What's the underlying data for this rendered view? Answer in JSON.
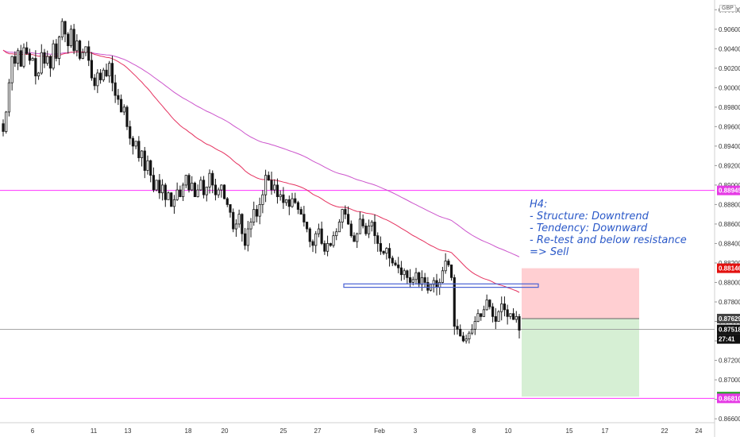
{
  "currency": "GBP",
  "annotation": {
    "lines": [
      "H4:",
      "- Structure: Downtrend",
      "- Tendency: Downward",
      "- Re-test and below resistance",
      "=> Sell"
    ]
  },
  "colors": {
    "up": "#2b2b2b",
    "down": "#111111",
    "ema_fast": "#e53360",
    "ema_slow": "#cc55cc",
    "level_line": "#ff33ff",
    "resistance_zone": "#4a62d4",
    "stop_zone": "#ffcfd2",
    "target_zone": "#d6efd4",
    "badge_red": "#e3110f",
    "badge_magenta": "#e53ae5",
    "badge_green": "#2aa22a",
    "badge_dark": "#444444",
    "badge_black": "#111111"
  },
  "chart_data": {
    "type": "candlestick",
    "symbol_currency": "GBP",
    "timeframe": "H4",
    "ylim": [
      0.8656,
      0.909
    ],
    "y_ticks": [
      "0.90800",
      "0.90600",
      "0.90400",
      "0.90200",
      "0.90000",
      "0.89800",
      "0.89600",
      "0.89400",
      "0.89200",
      "0.89000",
      "0.88800",
      "0.88600",
      "0.88400",
      "0.88200",
      "0.88000",
      "0.87800",
      "0.87600",
      "0.87400",
      "0.87200",
      "0.87000",
      "0.86800",
      "0.86600"
    ],
    "x_ticks": [
      "6",
      "11",
      "13",
      "18",
      "20",
      "25",
      "27",
      "Feb",
      "3",
      "8",
      "10",
      "15",
      "17",
      "22",
      "24"
    ],
    "price_labels": [
      {
        "text": "0.88945",
        "value": 0.88945,
        "color": "badge_magenta"
      },
      {
        "text": "0.88146",
        "value": 0.88146,
        "color": "badge_red"
      },
      {
        "text": "0.87629",
        "value": 0.87629,
        "color": "badge_dark"
      },
      {
        "text": "0.87518",
        "value": 0.87518,
        "color": "badge_black"
      },
      {
        "text": "27:41",
        "value": 0.8742,
        "color": "badge_black"
      },
      {
        "text": "0.86828",
        "value": 0.86828,
        "color": "badge_green"
      },
      {
        "text": "0.86810",
        "value": 0.8681,
        "color": "badge_magenta"
      }
    ],
    "horizontal_levels": [
      0.88945,
      0.8681
    ],
    "resistance_zone": [
      0.8795,
      0.87985
    ],
    "position": {
      "entry": 0.87629,
      "stop": 0.88146,
      "target": 0.86828
    },
    "closes": [
      0.8955,
      0.8975,
      0.9005,
      0.9032,
      0.9025,
      0.9038,
      0.9022,
      0.9041,
      0.9035,
      0.9028,
      0.903,
      0.9012,
      0.9015,
      0.9036,
      0.9025,
      0.9032,
      0.902,
      0.9045,
      0.903,
      0.9052,
      0.9068,
      0.9055,
      0.9043,
      0.906,
      0.9038,
      0.9048,
      0.903,
      0.9036,
      0.9042,
      0.9028,
      0.901,
      0.9002,
      0.9015,
      0.9008,
      0.9018,
      0.9012,
      0.9025,
      0.9005,
      0.8992,
      0.8988,
      0.8975,
      0.898,
      0.896,
      0.8948,
      0.894,
      0.8945,
      0.8928,
      0.8935,
      0.8915,
      0.8925,
      0.891,
      0.8895,
      0.8905,
      0.8892,
      0.89,
      0.8885,
      0.8892,
      0.8878,
      0.8885,
      0.8895,
      0.8888,
      0.89,
      0.891,
      0.8895,
      0.8902,
      0.8888,
      0.8895,
      0.8905,
      0.889,
      0.8898,
      0.8912,
      0.89,
      0.889,
      0.8895,
      0.89,
      0.8886,
      0.888,
      0.8872,
      0.8855,
      0.886,
      0.887,
      0.885,
      0.8838,
      0.8855,
      0.8862,
      0.8875,
      0.8868,
      0.888,
      0.889,
      0.891,
      0.8905,
      0.8895,
      0.89,
      0.8888,
      0.889,
      0.8882,
      0.8885,
      0.8878,
      0.8886,
      0.8882,
      0.8875,
      0.887,
      0.8862,
      0.8855,
      0.8842,
      0.8838,
      0.885,
      0.8855,
      0.884,
      0.8832,
      0.884,
      0.8838,
      0.8848,
      0.8852,
      0.8862,
      0.8875,
      0.887,
      0.886,
      0.8848,
      0.8842,
      0.885,
      0.8865,
      0.8858,
      0.885,
      0.8858,
      0.8862,
      0.8848,
      0.884,
      0.8832,
      0.883,
      0.8835,
      0.8825,
      0.882,
      0.8818,
      0.8815,
      0.8808,
      0.8812,
      0.8805,
      0.88,
      0.8803,
      0.881,
      0.8798,
      0.8805,
      0.88,
      0.8792,
      0.8798,
      0.8802,
      0.8795,
      0.88,
      0.8812,
      0.8822,
      0.8818,
      0.8805,
      0.8755,
      0.8752,
      0.8745,
      0.874,
      0.8742,
      0.8748,
      0.8752,
      0.876,
      0.8768,
      0.8765,
      0.8772,
      0.8782,
      0.8775,
      0.8765,
      0.876,
      0.877,
      0.8778,
      0.8772,
      0.8765,
      0.8768,
      0.8762,
      0.8765,
      0.8751
    ]
  }
}
